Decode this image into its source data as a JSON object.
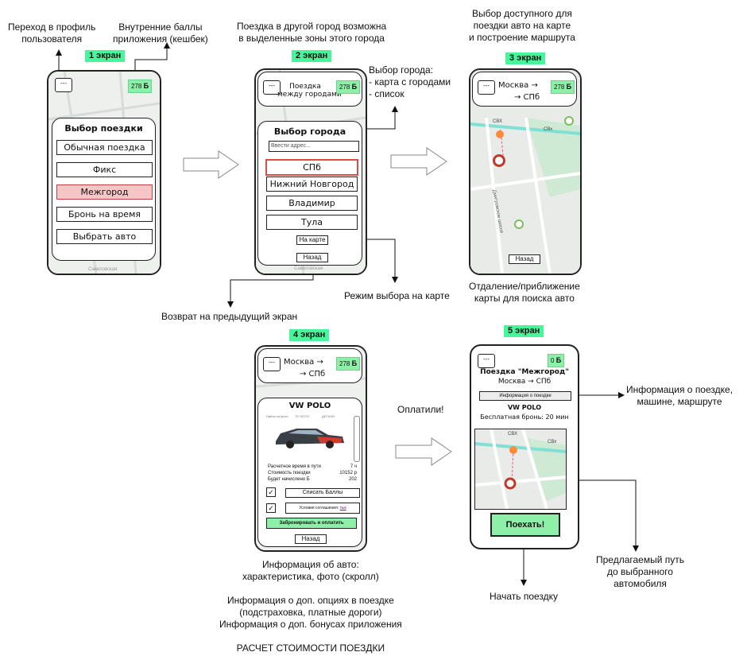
{
  "notes": {
    "profile": "Переход в профиль\nпользователя",
    "bonus": "Внутренние баллы\nприложения (кешбек)",
    "intercity": "Поездка в другой город возможна\nв выделенные зоны этого города",
    "city_select": "Выбор города:\n- карта с городами\n- список",
    "choose_car": "Выбор доступного для\nпоездки авто на карте\nи построение маршрута",
    "zoom": "Отдаление/приближение\nкарты для поиска авто",
    "map_mode": "Режим выбора на карте",
    "back": "Возврат на предыдущий экран",
    "paid": "Оплатили!",
    "trip_info": "Информация о поездке,\nмашине, маршруте",
    "route": "Предлагаемый путь\nдо выбранного\nавтомобиля",
    "start": "Начать поездку",
    "car_info": "Информация об авто:\nхарактеристика, фото (скролл)\n\nИнформация о доп. опциях в поездке\n(подстраховка, платные дороги)\nИнформация о доп. бонусах приложения\n\nРАСЧЕТ СТОИМОСТИ ПОЕЗДКИ"
  },
  "tags": [
    "1 экран",
    "2 экран",
    "3 экран",
    "4 экран",
    "5 экран"
  ],
  "common": {
    "menu": "---",
    "points": "278",
    "points_unit": "Б",
    "back": "Назад",
    "street": "Савеловская"
  },
  "screen1": {
    "title": "Выбор поездки",
    "options": [
      "Обычная поездка",
      "Фикс",
      "Межгород",
      "Бронь на время",
      "Выбрать авто"
    ]
  },
  "screen2": {
    "header": "Поездка\nмежду городами",
    "title": "Выбор города",
    "search_placeholder": "Ввести адрес...",
    "cities": [
      "СПб",
      "Нижний Новгород",
      "Владимир",
      "Тула"
    ],
    "on_map": "На карте"
  },
  "screen3": {
    "from": "Москва →",
    "to": "→  СПб",
    "road1": "СВХ",
    "road2": "СВх",
    "road3": "Дмитровское шоссе"
  },
  "screen4": {
    "car": "VW POLO",
    "chips": [
      "Найти на фото",
      "ТО ФОТО",
      "ДЕТАЛИ"
    ],
    "rows": [
      {
        "label": "Расчетное время в пути",
        "value": "7 ч"
      },
      {
        "label": "Стоимость поездки",
        "value": "10152 р"
      },
      {
        "label": "Будет начислено Б",
        "value": "202"
      }
    ],
    "spend": "Списать Баллы",
    "terms": "Условия соглашения:",
    "terms_link": "тык",
    "pay": "Забронировать и оплатить"
  },
  "screen5": {
    "points": "0",
    "title": "Поездка \"Межгород\"",
    "route": "Москва → СПб",
    "info_btn": "Информация о поездке",
    "car": "VW POLO",
    "free": "Бесплатная бронь: 20 мин",
    "go": "Поехать!"
  },
  "colors": {
    "accent": "#47f59a",
    "points_bg": "#8ef0a8",
    "selected_bg": "#f5c6c6",
    "selected_border": "#e04a4a",
    "map_road": "#7fe0d6",
    "map_route": "#ff8a3a",
    "marker": "#d9534f",
    "pin_green": "#7cbf5a"
  }
}
